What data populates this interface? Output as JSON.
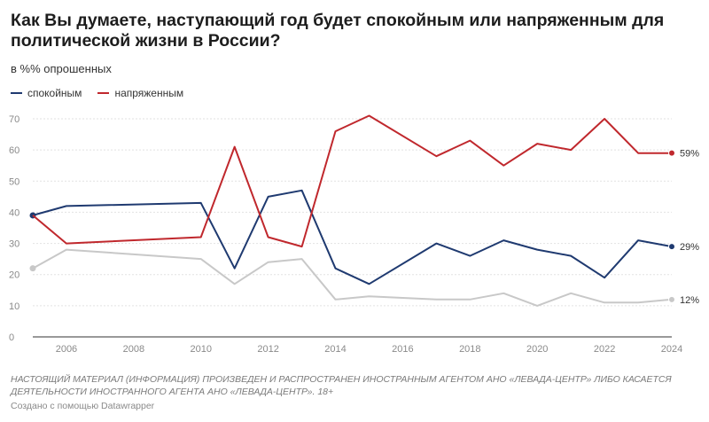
{
  "title": "Как Вы думаете, наступающий год будет спокойным или напряженным для политической жизни в России?",
  "subtitle": "в %% опрошенных",
  "legend": [
    {
      "label": "спокойным",
      "color": "#1f3a70"
    },
    {
      "label": "напряженным",
      "color": "#c0282d"
    }
  ],
  "notes": "НАСТОЯЩИЙ МАТЕРИАЛ (ИНФОРМАЦИЯ) ПРОИЗВЕДЕН И РАСПРОСТРАНЕН ИНОСТРАННЫМ АГЕНТОМ АНО «ЛЕВАДА-ЦЕНТР» ЛИБО КАСАЕТСЯ ДЕЯТЕЛЬНОСТИ ИНОСТРАННОГО АГЕНТА АНО «ЛЕВАДА-ЦЕНТР». 18+",
  "credit": "Создано с помощью Datawrapper",
  "chart_data": {
    "type": "line",
    "title": "Как Вы думаете, наступающий год будет спокойным или напряженным для политической жизни в России?",
    "ylabel": "в %% опрошенных",
    "xlim": [
      2005,
      2024
    ],
    "ylim": [
      0,
      70
    ],
    "y_ticks": [
      0,
      10,
      20,
      30,
      40,
      50,
      60,
      70
    ],
    "x_ticks": [
      2006,
      2008,
      2010,
      2012,
      2014,
      2016,
      2018,
      2020,
      2022,
      2024
    ],
    "grid": true,
    "legend_position": "top-left",
    "series": [
      {
        "name": "спокойным",
        "color": "#1f3a70",
        "end_label": "29%",
        "marker_last": true,
        "marker_first": true,
        "points": [
          [
            2005,
            39
          ],
          [
            2006,
            42
          ],
          [
            2010,
            43
          ],
          [
            2011,
            22
          ],
          [
            2012,
            45
          ],
          [
            2013,
            47
          ],
          [
            2014,
            22
          ],
          [
            2015,
            17
          ],
          [
            2017,
            30
          ],
          [
            2018,
            26
          ],
          [
            2019,
            31
          ],
          [
            2020,
            28
          ],
          [
            2021,
            26
          ],
          [
            2022,
            19
          ],
          [
            2023,
            31
          ],
          [
            2024,
            29
          ]
        ]
      },
      {
        "name": "напряженным",
        "color": "#c0282d",
        "end_label": "59%",
        "marker_last": true,
        "marker_first": false,
        "points": [
          [
            2005,
            39
          ],
          [
            2006,
            30
          ],
          [
            2010,
            32
          ],
          [
            2011,
            61
          ],
          [
            2012,
            32
          ],
          [
            2013,
            29
          ],
          [
            2014,
            66
          ],
          [
            2015,
            71
          ],
          [
            2017,
            58
          ],
          [
            2018,
            63
          ],
          [
            2019,
            55
          ],
          [
            2020,
            62
          ],
          [
            2021,
            60
          ],
          [
            2022,
            70
          ],
          [
            2023,
            59
          ],
          [
            2024,
            59
          ]
        ]
      },
      {
        "name": "",
        "color": "#c8c8c8",
        "end_label": "12%",
        "marker_last": true,
        "marker_first": true,
        "points": [
          [
            2005,
            22
          ],
          [
            2006,
            28
          ],
          [
            2010,
            25
          ],
          [
            2011,
            17
          ],
          [
            2012,
            24
          ],
          [
            2013,
            25
          ],
          [
            2014,
            12
          ],
          [
            2015,
            13
          ],
          [
            2017,
            12
          ],
          [
            2018,
            12
          ],
          [
            2019,
            14
          ],
          [
            2020,
            10
          ],
          [
            2021,
            14
          ],
          [
            2022,
            11
          ],
          [
            2023,
            11
          ],
          [
            2024,
            12
          ]
        ]
      }
    ]
  }
}
